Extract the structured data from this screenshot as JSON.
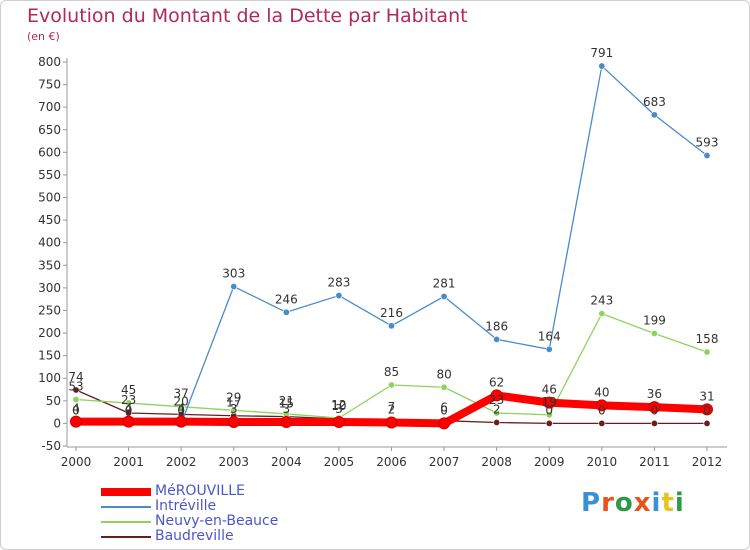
{
  "title": "Evolution du Montant de la Dette par Habitant",
  "subtitle": "(en €)",
  "logo": {
    "text": "Proxiti",
    "letter_colors": [
      "#3a8fd6",
      "#e6551f",
      "#2e9a48",
      "#e6551f",
      "#3a8fd6",
      "#e6c51f",
      "#2e9a48"
    ]
  },
  "chart_data": {
    "type": "line",
    "title": "Evolution du Montant de la Dette par Habitant",
    "subtitle": "(en €)",
    "xlabel": "",
    "ylabel": "",
    "x": [
      "2000",
      "2001",
      "2002",
      "2003",
      "2004",
      "2005",
      "2006",
      "2007",
      "2008",
      "2009",
      "2010",
      "2011",
      "2012"
    ],
    "ylim": [
      -50,
      800
    ],
    "yticks": [
      -50,
      0,
      50,
      100,
      150,
      200,
      250,
      300,
      350,
      400,
      450,
      500,
      550,
      600,
      650,
      700,
      750,
      800
    ],
    "grid": false,
    "legend_position": "bottom-left",
    "series": [
      {
        "name": "MéROUVILLE",
        "color": "#ff0000",
        "values": [
          4,
          4,
          4,
          3,
          3,
          3,
          2,
          0,
          62,
          46,
          40,
          36,
          31
        ],
        "labels": [
          "4",
          "4",
          "4",
          "3",
          "3",
          "3",
          "2",
          "0",
          "62",
          "46",
          "40",
          "36",
          "31"
        ]
      },
      {
        "name": "Intréville",
        "color": "#4a8cc8",
        "values": [
          0,
          0,
          0,
          303,
          246,
          283,
          216,
          281,
          186,
          164,
          791,
          683,
          593
        ],
        "labels": [
          "0",
          "0",
          "0",
          "303",
          "246",
          "283",
          "216",
          "281",
          "186",
          "164",
          "791",
          "683",
          "593"
        ]
      },
      {
        "name": "Neuvy-en-Beauce",
        "color": "#8fd35a",
        "values": [
          53,
          45,
          37,
          29,
          21,
          12,
          85,
          80,
          23,
          19,
          243,
          199,
          158
        ],
        "labels": [
          "53",
          "45",
          "37",
          "29",
          "21",
          "12",
          "85",
          "80",
          "23",
          "19",
          "243",
          "199",
          "158"
        ]
      },
      {
        "name": "Baudreville",
        "color": "#6a1e1e",
        "values": [
          74,
          23,
          20,
          17,
          15,
          10,
          7,
          6,
          2,
          0,
          0,
          0,
          0
        ],
        "labels": [
          "74",
          "23",
          "20",
          "17",
          "15",
          "10",
          "7",
          "6",
          "2",
          "0",
          "0",
          "0",
          "0"
        ]
      }
    ]
  }
}
